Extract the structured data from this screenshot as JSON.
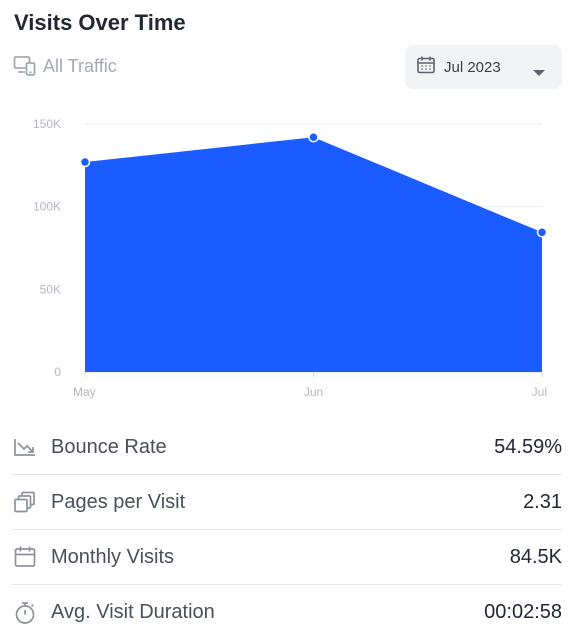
{
  "widget": {
    "title": "Visits Over Time",
    "device_filter": "All Traffic",
    "device_icon": "devices-icon",
    "date_selector": {
      "value": "Jul 2023",
      "icon": "calendar-icon",
      "caret": "chevron-down-icon"
    }
  },
  "chart_data": {
    "type": "area",
    "categories": [
      "May",
      "Jun",
      "Jul"
    ],
    "series": [
      {
        "values": [
          127000,
          142000,
          84500
        ]
      }
    ],
    "ylim": [
      0,
      150000
    ],
    "yticks": [
      {
        "value": 0,
        "label": "0"
      },
      {
        "value": 50000,
        "label": "50K"
      },
      {
        "value": 100000,
        "label": "100K"
      },
      {
        "value": 150000,
        "label": "150K"
      }
    ],
    "grid": true,
    "fill_color": "#1a5cff",
    "point_color": "#1a5cff",
    "title": "",
    "xlabel": "",
    "ylabel": ""
  },
  "metrics": [
    {
      "icon": "bounce-rate-icon",
      "label": "Bounce Rate",
      "value": "54.59%"
    },
    {
      "icon": "pages-icon",
      "label": "Pages per Visit",
      "value": "2.31"
    },
    {
      "icon": "calendar-icon",
      "label": "Monthly Visits",
      "value": "84.5K"
    },
    {
      "icon": "stopwatch-icon",
      "label": "Avg. Visit Duration",
      "value": "00:02:58"
    }
  ]
}
